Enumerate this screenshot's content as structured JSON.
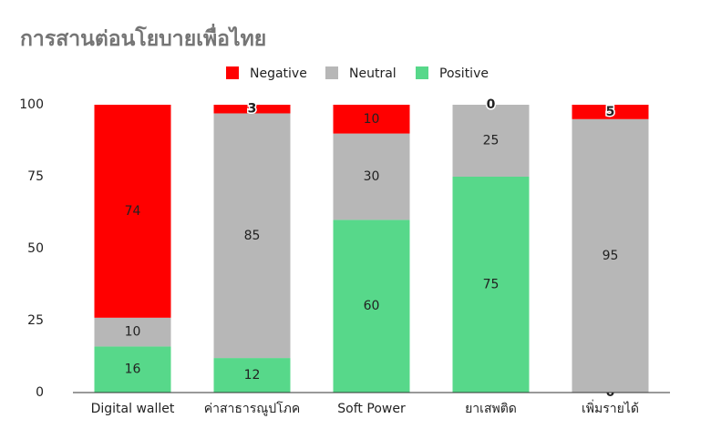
{
  "chart_data": {
    "type": "stacked_bar",
    "title": "การสานต่อนโยบายเพื่อไทย",
    "categories": [
      "Digital wallet",
      "ค่าสาธารณูปโภค",
      "Soft Power",
      "ยาเสพติด",
      "เพิ่มรายได้"
    ],
    "series": [
      {
        "name": "Negative",
        "color": "#ff0000",
        "values": [
          74,
          3,
          10,
          0,
          5
        ]
      },
      {
        "name": "Neutral",
        "color": "#b7b7b7",
        "values": [
          10,
          85,
          30,
          25,
          95
        ]
      },
      {
        "name": "Positive",
        "color": "#57d88a",
        "values": [
          16,
          12,
          60,
          75,
          0
        ]
      }
    ],
    "ylim": [
      0,
      100
    ],
    "yticks": [
      0,
      25,
      50,
      75,
      100
    ],
    "grid": false,
    "legend": "top"
  }
}
